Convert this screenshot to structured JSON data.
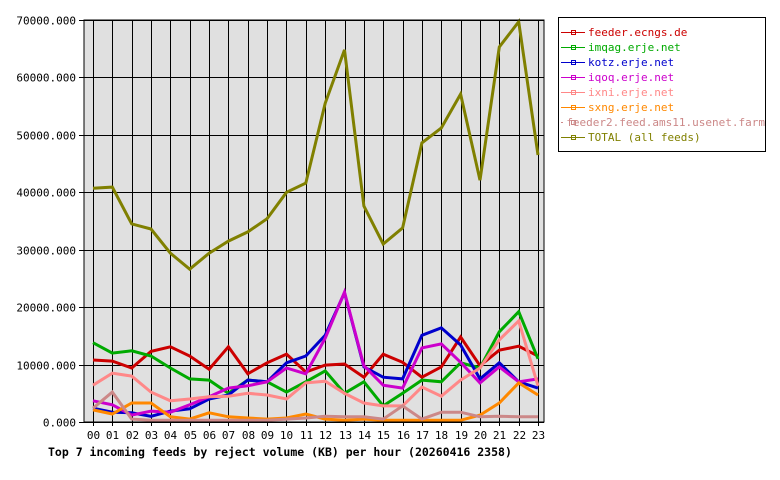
{
  "chart_data": {
    "type": "line",
    "title": "Top 7 incoming feeds by reject volume (KB) per hour (20260416 2358)",
    "xlabel": "",
    "ylabel": "",
    "ylim": [
      0,
      70000
    ],
    "grid": true,
    "legend_position": "right",
    "y_ticks": [
      "0.000",
      "10000.000",
      "20000.000",
      "30000.000",
      "40000.000",
      "50000.000",
      "60000.000",
      "70000.000"
    ],
    "categories": [
      "00",
      "01",
      "02",
      "03",
      "04",
      "05",
      "06",
      "07",
      "08",
      "09",
      "10",
      "11",
      "12",
      "13",
      "14",
      "15",
      "16",
      "17",
      "18",
      "19",
      "20",
      "21",
      "22",
      "23"
    ],
    "series": [
      {
        "name": "feeder.ecngs.de",
        "color": "#CC0000",
        "values": [
          10800,
          10600,
          9400,
          12300,
          13100,
          11500,
          9200,
          13100,
          8400,
          10300,
          11800,
          8700,
          9900,
          10100,
          7800,
          11800,
          10400,
          7800,
          9600,
          14800,
          9800,
          12500,
          13200,
          11500
        ]
      },
      {
        "name": "imqag.erje.net",
        "color": "#00AA00",
        "values": [
          13800,
          12000,
          12400,
          11500,
          9400,
          7500,
          7300,
          5000,
          7300,
          7000,
          5200,
          7000,
          8900,
          5000,
          7000,
          2800,
          5000,
          7300,
          7000,
          10300,
          9400,
          15700,
          19200,
          11000
        ]
      },
      {
        "name": "kotz.erje.net",
        "color": "#0000CC",
        "values": [
          2400,
          1700,
          1600,
          1000,
          1900,
          2300,
          4000,
          4700,
          7300,
          7000,
          10300,
          11500,
          15100,
          22500,
          9600,
          7800,
          7500,
          15100,
          16400,
          13400,
          7500,
          10300,
          7000,
          5900
        ]
      },
      {
        "name": "iqoq.erje.net",
        "color": "#CC00CC",
        "values": [
          3700,
          3000,
          1200,
          1900,
          1700,
          3000,
          4400,
          5900,
          6300,
          7000,
          9400,
          8400,
          14600,
          22600,
          9800,
          6400,
          5900,
          12900,
          13600,
          10400,
          6800,
          9600,
          7000,
          7500
        ]
      },
      {
        "name": "ixni.erje.net",
        "color": "#FF8888",
        "values": [
          6400,
          8500,
          8000,
          5200,
          3700,
          4000,
          4400,
          4500,
          5000,
          4700,
          4000,
          6800,
          7100,
          5000,
          3300,
          2800,
          2800,
          6100,
          4500,
          7300,
          9400,
          14300,
          17600,
          6300
        ]
      },
      {
        "name": "sxng.erje.net",
        "color": "#FF8800",
        "values": [
          2100,
          1400,
          3300,
          3300,
          900,
          500,
          1600,
          900,
          700,
          500,
          700,
          1400,
          500,
          300,
          500,
          300,
          300,
          300,
          300,
          300,
          1200,
          3300,
          6800,
          4700
        ]
      },
      {
        "name": "feeder2.feed.ams11.usenet.farm",
        "color": "#CC8888",
        "values": [
          2400,
          5200,
          500,
          300,
          300,
          300,
          300,
          300,
          300,
          300,
          500,
          700,
          1000,
          900,
          900,
          500,
          2800,
          500,
          1700,
          1700,
          900,
          1000,
          900,
          900
        ]
      },
      {
        "name": "TOTAL (all feeds)",
        "color": "#808000",
        "values": [
          40700,
          40900,
          34500,
          33600,
          29400,
          26600,
          29400,
          31500,
          33100,
          35400,
          40000,
          41600,
          55500,
          64800,
          37600,
          31000,
          33800,
          48600,
          51200,
          57100,
          42100,
          65300,
          69700,
          46500
        ]
      }
    ]
  },
  "plot_colors": {
    "background": "#E0E0E0",
    "grid": "#000000"
  }
}
